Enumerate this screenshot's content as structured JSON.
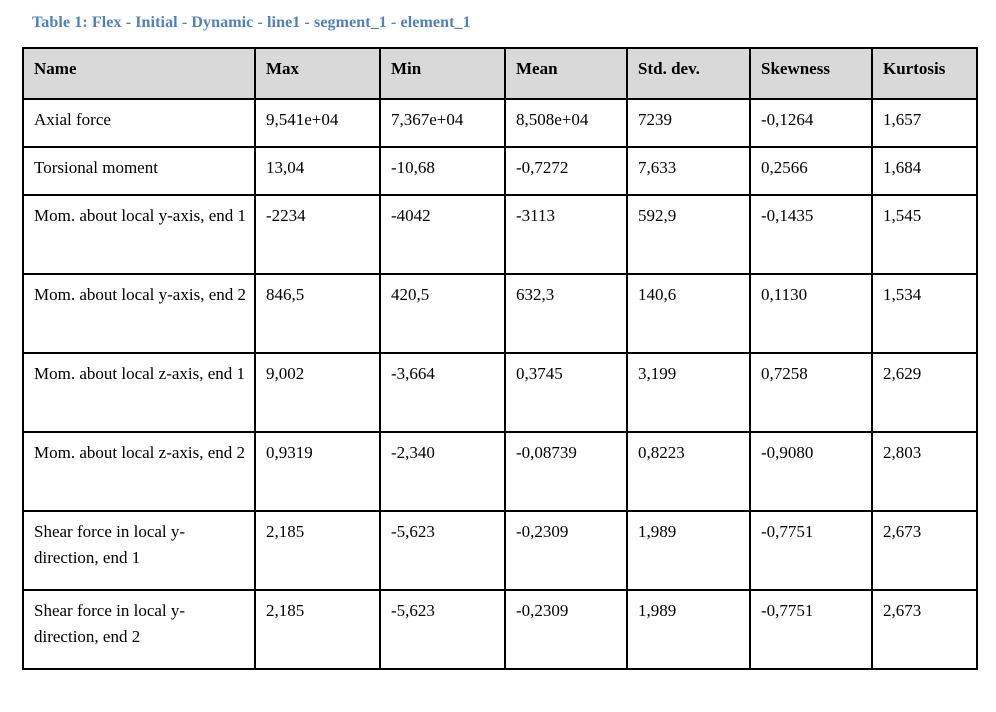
{
  "caption": {
    "label": "Table 1: Flex - Initial - Dynamic - line1 - segment_1 - element_1",
    "accent_color": "#4f81bd"
  },
  "table": {
    "header_bg": "#d9d9d9",
    "border_color": "#000000",
    "columns": [
      "Name",
      "Max",
      "Min",
      "Mean",
      "Std. dev.",
      "Skewness",
      "Kurtosis"
    ],
    "rows": [
      [
        "Axial force",
        "9,541e+04",
        "7,367e+04",
        "8,508e+04",
        "7239",
        "-0,1264",
        "1,657"
      ],
      [
        "Torsional moment",
        "13,04",
        "-10,68",
        "-0,7272",
        "7,633",
        "0,2566",
        "1,684"
      ],
      [
        "Mom. about local y-axis, end 1",
        "-2234",
        "-4042",
        "-3113",
        "592,9",
        "-0,1435",
        "1,545"
      ],
      [
        "Mom. about local y-axis, end 2",
        "846,5",
        "420,5",
        "632,3",
        "140,6",
        "0,1130",
        "1,534"
      ],
      [
        "Mom. about local z-axis, end 1",
        "9,002",
        "-3,664",
        "0,3745",
        "3,199",
        "0,7258",
        "2,629"
      ],
      [
        "Mom. about local z-axis, end 2",
        "0,9319",
        "-2,340",
        "-0,08739",
        "0,8223",
        "-0,9080",
        "2,803"
      ],
      [
        "Shear force in local y-direction, end 1",
        "2,185",
        "-5,623",
        "-0,2309",
        "1,989",
        "-0,7751",
        "2,673"
      ],
      [
        "Shear force in local y-direction, end 2",
        "2,185",
        "-5,623",
        "-0,2309",
        "1,989",
        "-0,7751",
        "2,673"
      ]
    ]
  }
}
